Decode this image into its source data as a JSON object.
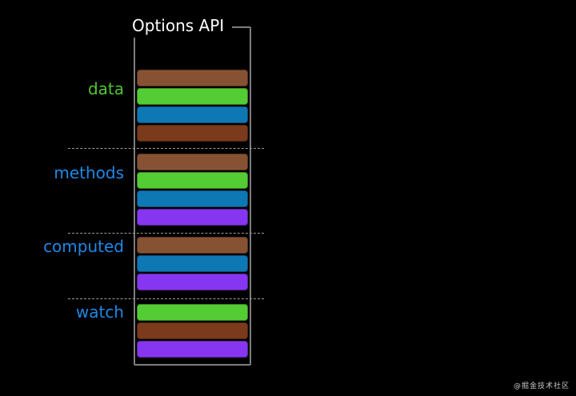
{
  "title": "Options API",
  "watermark": "@掘金技术社区",
  "colors": {
    "background": "#000000",
    "box_border": "#7d7d7d",
    "title_text": "#ffffff",
    "separator": "#9a9a9a",
    "watermark_text": "#c9c9c9",
    "label_green": "#4fc62f",
    "label_blue": "#1e88e5",
    "bar_brown": "#875233",
    "bar_green": "#54cc33",
    "bar_blue": "#0e78b5",
    "bar_dark_brown": "#7b3a1b",
    "bar_purple": "#8636f0"
  },
  "diagram": {
    "sections": [
      {
        "label": "data",
        "label_color": "label_green",
        "bars": [
          "bar_brown",
          "bar_green",
          "bar_blue",
          "bar_dark_brown"
        ]
      },
      {
        "label": "methods",
        "label_color": "label_blue",
        "bars": [
          "bar_brown",
          "bar_green",
          "bar_blue",
          "bar_purple"
        ]
      },
      {
        "label": "computed",
        "label_color": "label_blue",
        "bars": [
          "bar_brown",
          "bar_blue",
          "bar_purple"
        ]
      },
      {
        "label": "watch",
        "label_color": "label_blue",
        "bars": [
          "bar_green",
          "bar_dark_brown",
          "bar_purple"
        ]
      }
    ]
  }
}
